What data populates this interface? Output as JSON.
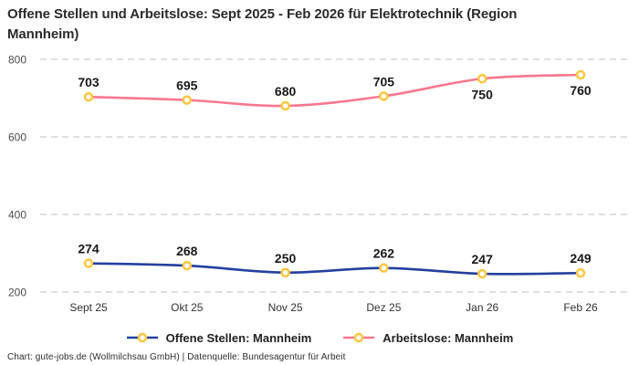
{
  "page": {
    "title": "Offene Stellen und Arbeitslose: Sept 2025 - Feb 2026 für Elektrotechnik (Region Mannheim)",
    "footer": "Chart: gute-jobs.de (Wollmilchsau GmbH) | Datenquelle: Bundesagentur für Arbeit"
  },
  "chart_data": {
    "type": "line",
    "title": "Offene Stellen und Arbeitslose: Sept 2025 - Feb 2026 für Elektrotechnik (Region Mannheim)",
    "categories": [
      "Sept 25",
      "Okt 25",
      "Nov 25",
      "Dez 25",
      "Jan 26",
      "Feb 26"
    ],
    "series": [
      {
        "name": "Offene Stellen: Mannheim",
        "values": [
          274,
          268,
          250,
          262,
          247,
          249
        ],
        "color": "#24409e",
        "label_below": [
          false,
          false,
          false,
          false,
          false,
          false
        ]
      },
      {
        "name": "Arbeitslose: Mannheim",
        "values": [
          703,
          695,
          680,
          705,
          750,
          760
        ],
        "color": "#f9778e",
        "label_below": [
          false,
          false,
          false,
          false,
          true,
          true
        ]
      }
    ],
    "marker_fill": "#ffffff",
    "marker_stroke": "#fcc63f",
    "ylim": [
      200,
      800
    ],
    "yticks": [
      200,
      400,
      600,
      800
    ],
    "grid": "horizontal-dashed",
    "gridline_color": "#cccccc",
    "axis_tick_color": "#4d4d4d",
    "value_label_color": "#191919",
    "legend_position": "bottom"
  }
}
